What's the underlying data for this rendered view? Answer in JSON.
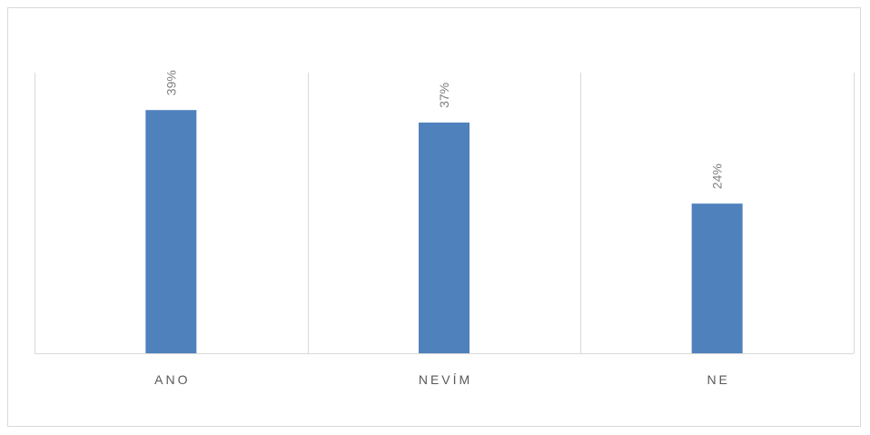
{
  "chart_data": {
    "type": "bar",
    "categories": [
      "ANO",
      "NEVÍM",
      "NE"
    ],
    "values": [
      39,
      37,
      24
    ],
    "data_labels": [
      "39%",
      "37%",
      "24%"
    ],
    "unit": "%",
    "title": "",
    "xlabel": "",
    "ylabel": "",
    "ylim": [
      0,
      45
    ],
    "grid": "vertical category separators",
    "legend": "none",
    "bar_color": "#4f81bd",
    "label_color": "#7f7f7f",
    "axis_color": "#d9d9d9"
  }
}
